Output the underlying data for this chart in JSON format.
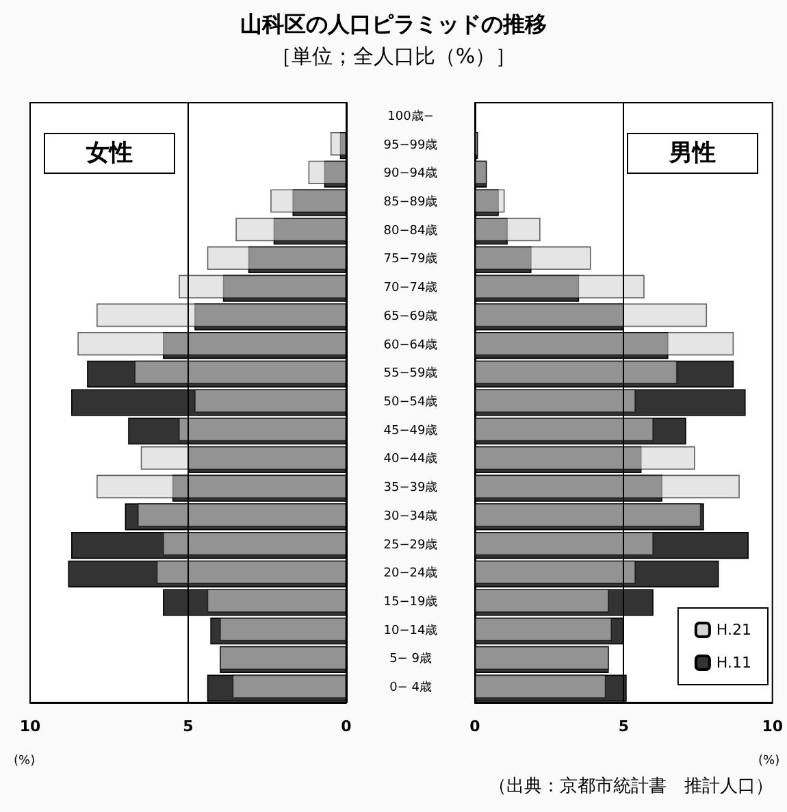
{
  "chart_data": [
    {
      "type": "bar",
      "orientation": "horizontal",
      "title": "山科区の人口ピラミッドの推移",
      "subtitle": "［単位；全人口比（%）］",
      "xlabel": "(%)",
      "annotations": [
        "女性"
      ],
      "categories": [
        "100歳−",
        "95−99歳",
        "90−94歳",
        "85−89歳",
        "80−84歳",
        "75−79歳",
        "70−74歳",
        "65−69歳",
        "60−64歳",
        "55−59歳",
        "50−54歳",
        "45−49歳",
        "40−44歳",
        "35−39歳",
        "30−34歳",
        "25−29歳",
        "20−24歳",
        "15−19歳",
        "10−14歳",
        "5− 9歳",
        "0− 4歳"
      ],
      "series": [
        {
          "color": "#d3d3d3",
          "values": [
            0,
            0.5,
            1.2,
            2.4,
            3.5,
            4.4,
            5.3,
            7.9,
            8.5,
            6.7,
            4.8,
            5.3,
            6.5,
            7.9,
            6.6,
            5.8,
            6.0,
            4.4,
            4.0,
            4.0,
            3.6
          ]
        },
        {
          "color": "#333333",
          "values": [
            0,
            0.2,
            0.7,
            1.7,
            2.3,
            3.1,
            3.9,
            4.8,
            5.8,
            8.2,
            8.7,
            6.9,
            5.0,
            5.5,
            7.0,
            8.7,
            8.8,
            5.8,
            4.3,
            4.0,
            4.4
          ]
        }
      ],
      "xlim": [
        10,
        0
      ],
      "xticks": [
        0,
        5,
        10
      ],
      "ref_lines": [
        {
          "axis": "x",
          "value": 5
        }
      ],
      "grid": false,
      "legend": false
    },
    {
      "type": "bar",
      "orientation": "horizontal",
      "xlabel": "(%)",
      "annotations": [
        "男性",
        "（出典：京都市統計書　推計人口）"
      ],
      "categories": [
        "100歳−",
        "95−99歳",
        "90−94歳",
        "85−89歳",
        "80−84歳",
        "75−79歳",
        "70−74歳",
        "65−69歳",
        "60−64歳",
        "55−59歳",
        "50−54歳",
        "45−49歳",
        "40−44歳",
        "35−39歳",
        "30−34歳",
        "25−29歳",
        "20−24歳",
        "15−19歳",
        "10−14歳",
        "5− 9歳",
        "0− 4歳"
      ],
      "series": [
        {
          "name": "H.21",
          "color": "#d3d3d3",
          "values": [
            0,
            0.1,
            0.4,
            1.0,
            2.2,
            3.9,
            5.7,
            7.8,
            8.7,
            6.8,
            5.4,
            6.0,
            7.4,
            8.9,
            7.6,
            6.0,
            5.4,
            4.5,
            4.6,
            4.5,
            4.4
          ]
        },
        {
          "name": "H.11",
          "color": "#333333",
          "values": [
            0,
            0.1,
            0.4,
            0.8,
            1.1,
            1.9,
            3.5,
            5.0,
            6.5,
            8.7,
            9.1,
            7.1,
            5.6,
            6.3,
            7.7,
            9.2,
            8.2,
            6.0,
            5.0,
            4.5,
            5.1
          ]
        }
      ],
      "xlim": [
        0,
        10
      ],
      "xticks": [
        0,
        5,
        10
      ],
      "ref_lines": [
        {
          "axis": "x",
          "value": 5
        }
      ],
      "grid": false,
      "legend": "bottom right",
      "tick_labels": "x"
    }
  ]
}
